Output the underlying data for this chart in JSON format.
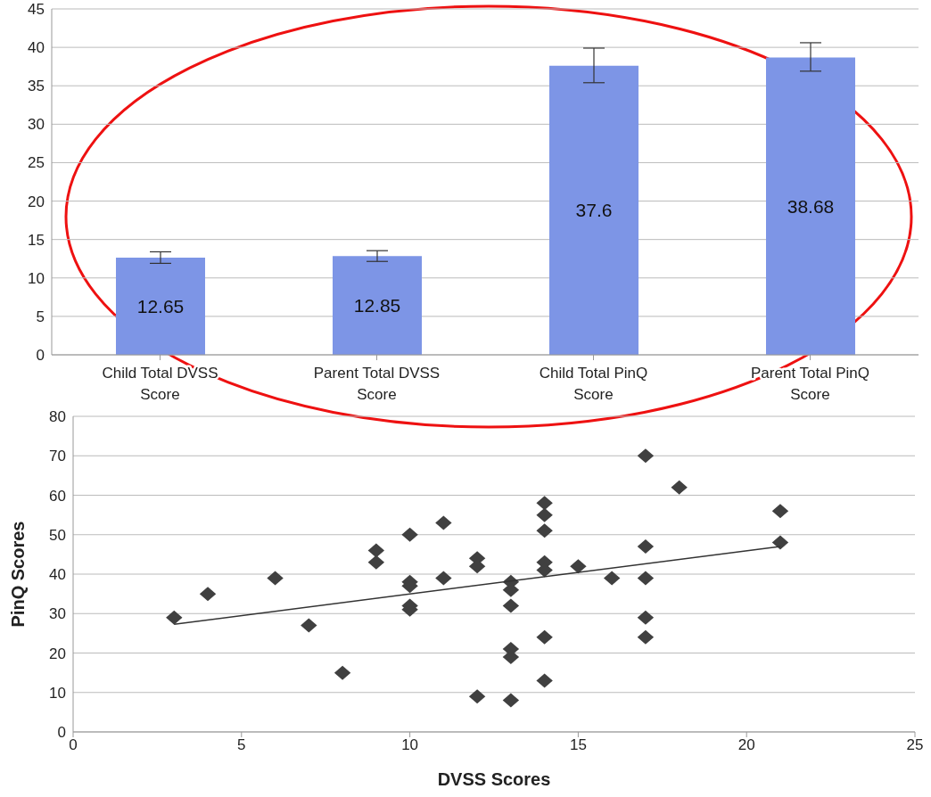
{
  "chart_data": [
    {
      "type": "bar",
      "categories": [
        "Child Total DVSS Score",
        "Parent Total DVSS Score",
        "Child Total PinQ Score",
        "Parent Total PinQ Score"
      ],
      "values": [
        12.65,
        12.85,
        37.6,
        38.68
      ],
      "color": "#7d95e6",
      "errors": [
        [
          11.9,
          13.4
        ],
        [
          12.15,
          13.55
        ],
        [
          35.4,
          39.9
        ],
        [
          36.9,
          40.6
        ]
      ],
      "data_labels": true,
      "ylim": [
        0,
        45
      ],
      "yticks": [
        0,
        5,
        10,
        15,
        20,
        25,
        30,
        35,
        40,
        45
      ],
      "grid": "y",
      "legend": false
    },
    {
      "type": "scatter",
      "xlabel": "DVSS Scores",
      "ylabel": "PinQ Scores",
      "marker": "diamond",
      "grid": "y",
      "legend": false,
      "xlim": [
        0,
        25
      ],
      "xticks": [
        0,
        5,
        10,
        15,
        20,
        25
      ],
      "ylim": [
        0,
        80
      ],
      "yticks": [
        0,
        10,
        20,
        30,
        40,
        50,
        60,
        70,
        80
      ],
      "series": [
        {
          "color": "#404040",
          "x": [
            3,
            4,
            6,
            7,
            8,
            9,
            9,
            10,
            10,
            10,
            10,
            10,
            11,
            11,
            12,
            12,
            12,
            13,
            13,
            13,
            13,
            13,
            13,
            14,
            14,
            14,
            14,
            14,
            14,
            14,
            15,
            16,
            17,
            17,
            17,
            17,
            17,
            18,
            21,
            21
          ],
          "values": [
            29,
            35,
            39,
            27,
            15,
            46,
            43,
            50,
            38,
            37,
            32,
            31,
            53,
            39,
            44,
            42,
            9,
            38,
            36,
            32,
            21,
            19,
            8,
            58,
            55,
            51,
            43,
            41,
            24,
            13,
            42,
            39,
            70,
            47,
            39,
            29,
            24,
            62,
            56,
            48
          ]
        },
        {
          "type": "line",
          "color": "#333333",
          "marker": "none",
          "x": [
            3,
            21
          ],
          "values": [
            27.3,
            47
          ]
        }
      ]
    }
  ]
}
